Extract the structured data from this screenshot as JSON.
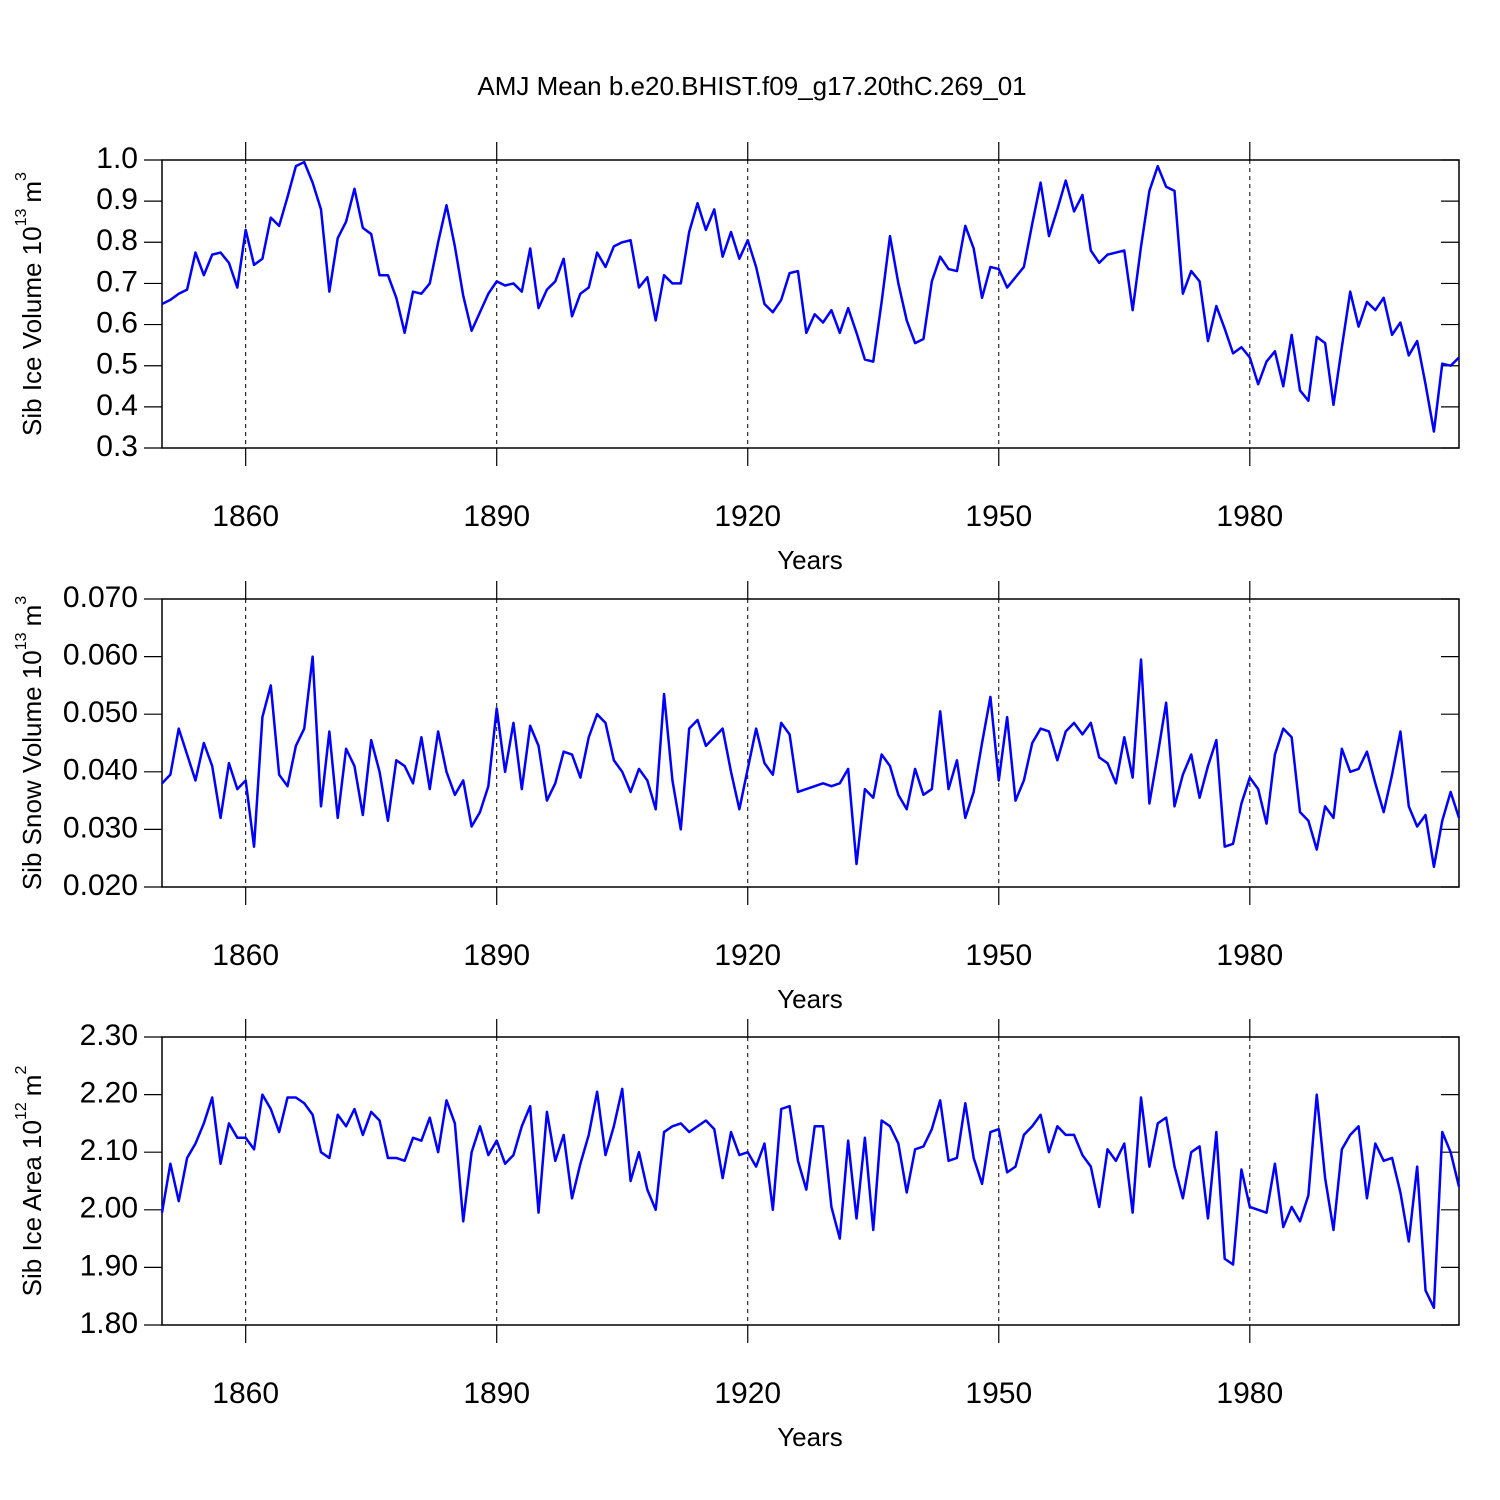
{
  "title": "AMJ Mean b.e20.BHIST.f09_g17.20thC.269_01",
  "chart_data": [
    {
      "type": "line",
      "color": "#0000ff",
      "xlabel": "Years",
      "ylabel": [
        "Sib Ice Volume 10",
        "13",
        "m",
        "3"
      ],
      "xlim": [
        1850,
        2005
      ],
      "xticks": [
        1860,
        1890,
        1920,
        1950,
        1980
      ],
      "xgrid": true,
      "ylim": [
        0.3,
        1.0
      ],
      "yticks": [
        0.3,
        0.4,
        0.5,
        0.6,
        0.7,
        0.8,
        0.9,
        {
          "value": 1.0,
          "label": "1.0"
        }
      ],
      "x": [
        1850,
        1851,
        1852,
        1853,
        1854,
        1855,
        1856,
        1857,
        1858,
        1859,
        1860,
        1861,
        1862,
        1863,
        1864,
        1865,
        1866,
        1867,
        1868,
        1869,
        1870,
        1871,
        1872,
        1873,
        1874,
        1875,
        1876,
        1877,
        1878,
        1879,
        1880,
        1881,
        1882,
        1883,
        1884,
        1885,
        1886,
        1887,
        1888,
        1889,
        1890,
        1891,
        1892,
        1893,
        1894,
        1895,
        1896,
        1897,
        1898,
        1899,
        1900,
        1901,
        1902,
        1903,
        1904,
        1905,
        1906,
        1907,
        1908,
        1909,
        1910,
        1911,
        1912,
        1913,
        1914,
        1915,
        1916,
        1917,
        1918,
        1919,
        1920,
        1921,
        1922,
        1923,
        1924,
        1925,
        1926,
        1927,
        1928,
        1929,
        1930,
        1931,
        1932,
        1933,
        1934,
        1935,
        1936,
        1937,
        1938,
        1939,
        1940,
        1941,
        1942,
        1943,
        1944,
        1945,
        1946,
        1947,
        1948,
        1949,
        1950,
        1951,
        1952,
        1953,
        1954,
        1955,
        1956,
        1957,
        1958,
        1959,
        1960,
        1961,
        1962,
        1963,
        1964,
        1965,
        1966,
        1967,
        1968,
        1969,
        1970,
        1971,
        1972,
        1973,
        1974,
        1975,
        1976,
        1977,
        1978,
        1979,
        1980,
        1981,
        1982,
        1983,
        1984,
        1985,
        1986,
        1987,
        1988,
        1989,
        1990,
        1991,
        1992,
        1993,
        1994,
        1995,
        1996,
        1997,
        1998,
        1999,
        2000,
        2001,
        2002,
        2003,
        2004,
        2005
      ],
      "values": [
        0.65,
        0.66,
        0.675,
        0.685,
        0.775,
        0.72,
        0.77,
        0.775,
        0.75,
        0.69,
        0.83,
        0.745,
        0.76,
        0.86,
        0.84,
        0.91,
        0.985,
        0.995,
        0.945,
        0.88,
        0.68,
        0.81,
        0.85,
        0.93,
        0.835,
        0.82,
        0.72,
        0.72,
        0.665,
        0.58,
        0.68,
        0.675,
        0.7,
        0.8,
        0.89,
        0.79,
        0.67,
        0.585,
        0.63,
        0.675,
        0.705,
        0.695,
        0.7,
        0.68,
        0.785,
        0.64,
        0.685,
        0.705,
        0.76,
        0.62,
        0.675,
        0.69,
        0.775,
        0.74,
        0.79,
        0.8,
        0.805,
        0.69,
        0.715,
        0.61,
        0.72,
        0.7,
        0.7,
        0.825,
        0.895,
        0.83,
        0.88,
        0.765,
        0.825,
        0.76,
        0.805,
        0.74,
        0.65,
        0.63,
        0.66,
        0.725,
        0.73,
        0.58,
        0.625,
        0.605,
        0.635,
        0.58,
        0.64,
        0.58,
        0.515,
        0.51,
        0.655,
        0.815,
        0.7,
        0.61,
        0.555,
        0.565,
        0.705,
        0.765,
        0.735,
        0.73,
        0.84,
        0.785,
        0.665,
        0.74,
        0.735,
        0.69,
        0.715,
        0.74,
        0.845,
        0.945,
        0.815,
        0.88,
        0.95,
        0.875,
        0.915,
        0.78,
        0.75,
        0.77,
        0.775,
        0.78,
        0.635,
        0.79,
        0.925,
        0.985,
        0.935,
        0.925,
        0.675,
        0.73,
        0.705,
        0.56,
        0.645,
        0.59,
        0.53,
        0.545,
        0.52,
        0.455,
        0.51,
        0.535,
        0.45,
        0.575,
        0.44,
        0.415,
        0.57,
        0.555,
        0.405,
        0.545,
        0.68,
        0.595,
        0.655,
        0.635,
        0.665,
        0.575,
        0.605,
        0.525,
        0.56,
        0.455,
        0.34,
        0.505,
        0.5,
        0.52
      ]
    },
    {
      "type": "line",
      "color": "#0000ff",
      "xlabel": "Years",
      "ylabel": [
        "Sib Snow Volume 10",
        "13",
        "m",
        "3"
      ],
      "xlim": [
        1850,
        2005
      ],
      "xticks": [
        1860,
        1890,
        1920,
        1950,
        1980
      ],
      "xgrid": true,
      "ylim": [
        0.02,
        0.07
      ],
      "yticks": [
        {
          "value": 0.02,
          "label": "0.020"
        },
        {
          "value": 0.03,
          "label": "0.030"
        },
        {
          "value": 0.04,
          "label": "0.040"
        },
        {
          "value": 0.05,
          "label": "0.050"
        },
        {
          "value": 0.06,
          "label": "0.060"
        },
        {
          "value": 0.07,
          "label": "0.070"
        }
      ],
      "x": [
        1850,
        1851,
        1852,
        1853,
        1854,
        1855,
        1856,
        1857,
        1858,
        1859,
        1860,
        1861,
        1862,
        1863,
        1864,
        1865,
        1866,
        1867,
        1868,
        1869,
        1870,
        1871,
        1872,
        1873,
        1874,
        1875,
        1876,
        1877,
        1878,
        1879,
        1880,
        1881,
        1882,
        1883,
        1884,
        1885,
        1886,
        1887,
        1888,
        1889,
        1890,
        1891,
        1892,
        1893,
        1894,
        1895,
        1896,
        1897,
        1898,
        1899,
        1900,
        1901,
        1902,
        1903,
        1904,
        1905,
        1906,
        1907,
        1908,
        1909,
        1910,
        1911,
        1912,
        1913,
        1914,
        1915,
        1916,
        1917,
        1918,
        1919,
        1920,
        1921,
        1922,
        1923,
        1924,
        1925,
        1926,
        1927,
        1928,
        1929,
        1930,
        1931,
        1932,
        1933,
        1934,
        1935,
        1936,
        1937,
        1938,
        1939,
        1940,
        1941,
        1942,
        1943,
        1944,
        1945,
        1946,
        1947,
        1948,
        1949,
        1950,
        1951,
        1952,
        1953,
        1954,
        1955,
        1956,
        1957,
        1958,
        1959,
        1960,
        1961,
        1962,
        1963,
        1964,
        1965,
        1966,
        1967,
        1968,
        1969,
        1970,
        1971,
        1972,
        1973,
        1974,
        1975,
        1976,
        1977,
        1978,
        1979,
        1980,
        1981,
        1982,
        1983,
        1984,
        1985,
        1986,
        1987,
        1988,
        1989,
        1990,
        1991,
        1992,
        1993,
        1994,
        1995,
        1996,
        1997,
        1998,
        1999,
        2000,
        2001,
        2002,
        2003,
        2004,
        2005
      ],
      "values": [
        0.038,
        0.0395,
        0.0475,
        0.043,
        0.0385,
        0.045,
        0.041,
        0.032,
        0.0415,
        0.037,
        0.0385,
        0.027,
        0.0495,
        0.055,
        0.0395,
        0.0375,
        0.0445,
        0.0475,
        0.06,
        0.034,
        0.047,
        0.032,
        0.044,
        0.041,
        0.0325,
        0.0455,
        0.04,
        0.0315,
        0.042,
        0.041,
        0.038,
        0.046,
        0.037,
        0.047,
        0.04,
        0.036,
        0.0385,
        0.0305,
        0.033,
        0.0375,
        0.051,
        0.04,
        0.0485,
        0.037,
        0.048,
        0.0445,
        0.035,
        0.038,
        0.0435,
        0.043,
        0.039,
        0.046,
        0.05,
        0.0485,
        0.042,
        0.04,
        0.0365,
        0.0405,
        0.0385,
        0.0335,
        0.0535,
        0.0385,
        0.03,
        0.0475,
        0.049,
        0.0445,
        0.046,
        0.0475,
        0.04,
        0.0335,
        0.0405,
        0.0475,
        0.0415,
        0.0395,
        0.0485,
        0.0465,
        0.0365,
        0.037,
        0.0375,
        0.038,
        0.0375,
        0.038,
        0.0405,
        0.024,
        0.037,
        0.0355,
        0.043,
        0.041,
        0.036,
        0.0335,
        0.0405,
        0.036,
        0.037,
        0.0505,
        0.037,
        0.042,
        0.032,
        0.0365,
        0.045,
        0.053,
        0.0385,
        0.0495,
        0.035,
        0.0385,
        0.045,
        0.0475,
        0.047,
        0.042,
        0.047,
        0.0485,
        0.0465,
        0.0485,
        0.0425,
        0.0415,
        0.038,
        0.046,
        0.039,
        0.0595,
        0.0345,
        0.043,
        0.052,
        0.034,
        0.0395,
        0.043,
        0.0355,
        0.041,
        0.0455,
        0.027,
        0.0275,
        0.0345,
        0.039,
        0.037,
        0.031,
        0.043,
        0.0475,
        0.046,
        0.033,
        0.0315,
        0.0265,
        0.034,
        0.032,
        0.044,
        0.04,
        0.0405,
        0.0435,
        0.038,
        0.033,
        0.0395,
        0.047,
        0.034,
        0.0305,
        0.0325,
        0.0235,
        0.0315,
        0.0365,
        0.032
      ]
    },
    {
      "type": "line",
      "color": "#0000ff",
      "xlabel": "Years",
      "ylabel": [
        "Sib Ice Area 10",
        "12",
        "m",
        "2"
      ],
      "xlim": [
        1850,
        2005
      ],
      "xticks": [
        1860,
        1890,
        1920,
        1950,
        1980
      ],
      "xgrid": true,
      "ylim": [
        1.8,
        2.3
      ],
      "yticks": [
        {
          "value": 1.8,
          "label": "1.80"
        },
        {
          "value": 1.9,
          "label": "1.90"
        },
        {
          "value": 2.0,
          "label": "2.00"
        },
        {
          "value": 2.1,
          "label": "2.10"
        },
        {
          "value": 2.2,
          "label": "2.20"
        },
        {
          "value": 2.3,
          "label": "2.30"
        }
      ],
      "x": [
        1850,
        1851,
        1852,
        1853,
        1854,
        1855,
        1856,
        1857,
        1858,
        1859,
        1860,
        1861,
        1862,
        1863,
        1864,
        1865,
        1866,
        1867,
        1868,
        1869,
        1870,
        1871,
        1872,
        1873,
        1874,
        1875,
        1876,
        1877,
        1878,
        1879,
        1880,
        1881,
        1882,
        1883,
        1884,
        1885,
        1886,
        1887,
        1888,
        1889,
        1890,
        1891,
        1892,
        1893,
        1894,
        1895,
        1896,
        1897,
        1898,
        1899,
        1900,
        1901,
        1902,
        1903,
        1904,
        1905,
        1906,
        1907,
        1908,
        1909,
        1910,
        1911,
        1912,
        1913,
        1914,
        1915,
        1916,
        1917,
        1918,
        1919,
        1920,
        1921,
        1922,
        1923,
        1924,
        1925,
        1926,
        1927,
        1928,
        1929,
        1930,
        1931,
        1932,
        1933,
        1934,
        1935,
        1936,
        1937,
        1938,
        1939,
        1940,
        1941,
        1942,
        1943,
        1944,
        1945,
        1946,
        1947,
        1948,
        1949,
        1950,
        1951,
        1952,
        1953,
        1954,
        1955,
        1956,
        1957,
        1958,
        1959,
        1960,
        1961,
        1962,
        1963,
        1964,
        1965,
        1966,
        1967,
        1968,
        1969,
        1970,
        1971,
        1972,
        1973,
        1974,
        1975,
        1976,
        1977,
        1978,
        1979,
        1980,
        1981,
        1982,
        1983,
        1984,
        1985,
        1986,
        1987,
        1988,
        1989,
        1990,
        1991,
        1992,
        1993,
        1994,
        1995,
        1996,
        1997,
        1998,
        1999,
        2000,
        2001,
        2002,
        2003,
        2004,
        2005
      ],
      "values": [
        1.995,
        2.08,
        2.015,
        2.09,
        2.115,
        2.15,
        2.195,
        2.08,
        2.15,
        2.125,
        2.125,
        2.105,
        2.2,
        2.175,
        2.135,
        2.195,
        2.195,
        2.185,
        2.165,
        2.1,
        2.09,
        2.165,
        2.145,
        2.175,
        2.13,
        2.17,
        2.155,
        2.09,
        2.09,
        2.085,
        2.125,
        2.12,
        2.16,
        2.1,
        2.19,
        2.15,
        1.98,
        2.1,
        2.145,
        2.095,
        2.12,
        2.08,
        2.095,
        2.145,
        2.18,
        1.995,
        2.17,
        2.085,
        2.13,
        2.02,
        2.08,
        2.13,
        2.205,
        2.095,
        2.145,
        2.21,
        2.05,
        2.1,
        2.035,
        2.0,
        2.135,
        2.145,
        2.15,
        2.135,
        2.145,
        2.155,
        2.14,
        2.055,
        2.135,
        2.095,
        2.1,
        2.075,
        2.115,
        2.0,
        2.175,
        2.18,
        2.085,
        2.035,
        2.145,
        2.145,
        2.005,
        1.95,
        2.12,
        1.985,
        2.125,
        1.965,
        2.155,
        2.145,
        2.115,
        2.03,
        2.105,
        2.11,
        2.14,
        2.19,
        2.085,
        2.09,
        2.185,
        2.09,
        2.045,
        2.135,
        2.14,
        2.065,
        2.075,
        2.13,
        2.145,
        2.165,
        2.1,
        2.145,
        2.13,
        2.13,
        2.095,
        2.075,
        2.005,
        2.105,
        2.085,
        2.115,
        1.995,
        2.195,
        2.075,
        2.15,
        2.16,
        2.075,
        2.02,
        2.1,
        2.11,
        1.985,
        2.135,
        1.915,
        1.905,
        2.07,
        2.005,
        2.0,
        1.995,
        2.08,
        1.97,
        2.005,
        1.98,
        2.025,
        2.2,
        2.055,
        1.965,
        2.105,
        2.13,
        2.145,
        2.02,
        2.115,
        2.085,
        2.09,
        2.03,
        1.945,
        2.075,
        1.86,
        1.83,
        2.135,
        2.1,
        2.04
      ]
    }
  ]
}
